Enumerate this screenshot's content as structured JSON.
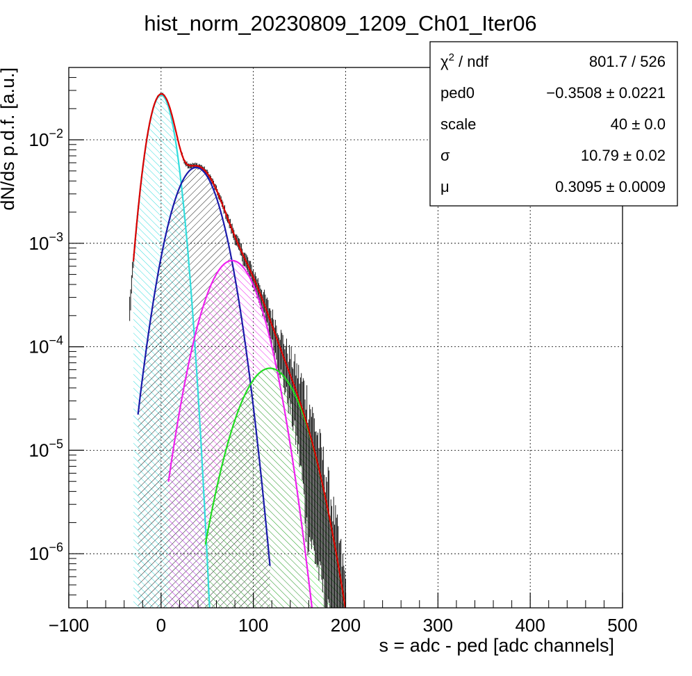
{
  "chart_data": {
    "type": "line",
    "title": "hist_norm_20230809_1209_Ch01_Iter06",
    "xlabel": "s = adc - ped [adc channels]",
    "ylabel": "dN/ds p.d.f. [a.u.]",
    "xlim": [
      -100,
      500
    ],
    "ylim": [
      3e-07,
      0.05
    ],
    "yscale": "log",
    "grid": true,
    "x_ticks": [
      -100,
      0,
      100,
      200,
      300,
      400,
      500
    ],
    "x_tick_labels": [
      "−100",
      "0",
      "100",
      "200",
      "300",
      "400",
      "500"
    ],
    "y_ticks": [
      {
        "value": 0.01,
        "base": "10",
        "exp": "−2"
      },
      {
        "value": 0.001,
        "base": "10",
        "exp": "−3"
      },
      {
        "value": 0.0001,
        "base": "10",
        "exp": "−4"
      },
      {
        "value": 1e-05,
        "base": "10",
        "exp": "−5"
      },
      {
        "value": 1e-06,
        "base": "10",
        "exp": "−6"
      }
    ],
    "components": [
      {
        "color": "#33dddd",
        "mean": 0,
        "sigma": 11,
        "peak": 0.027,
        "xmin": -30,
        "xmax": 60
      },
      {
        "color": "#1a1aaa",
        "mean": 38,
        "sigma": 19,
        "peak": 0.0054,
        "xmin": -25,
        "xmax": 118
      },
      {
        "color": "#ee22ee",
        "mean": 77,
        "sigma": 22,
        "peak": 0.00068,
        "xmin": 8,
        "xmax": 170
      },
      {
        "color": "#22dd22",
        "mean": 118,
        "sigma": 25,
        "peak": 6.2e-05,
        "xmin": 48,
        "xmax": 200
      }
    ],
    "total_fit": {
      "color": "#dd0000",
      "xmin": -30,
      "xmax": 232
    },
    "data_color": "#000000",
    "stats": [
      {
        "name": "χ",
        "sup": "2",
        "suffix": " / ndf",
        "value": "801.7 / 526"
      },
      {
        "name": "ped0",
        "sup": "",
        "suffix": "",
        "value": "−0.3508 ± 0.0221"
      },
      {
        "name": "scale",
        "sup": "",
        "suffix": "",
        "value": "40 ± 0.0"
      },
      {
        "name": "σ",
        "sup": "",
        "suffix": "",
        "value": "10.79 ± 0.02"
      },
      {
        "name": "μ",
        "sup": "",
        "suffix": "",
        "value": "0.3095 ± 0.0009"
      }
    ],
    "legend_placement": "top-right"
  }
}
